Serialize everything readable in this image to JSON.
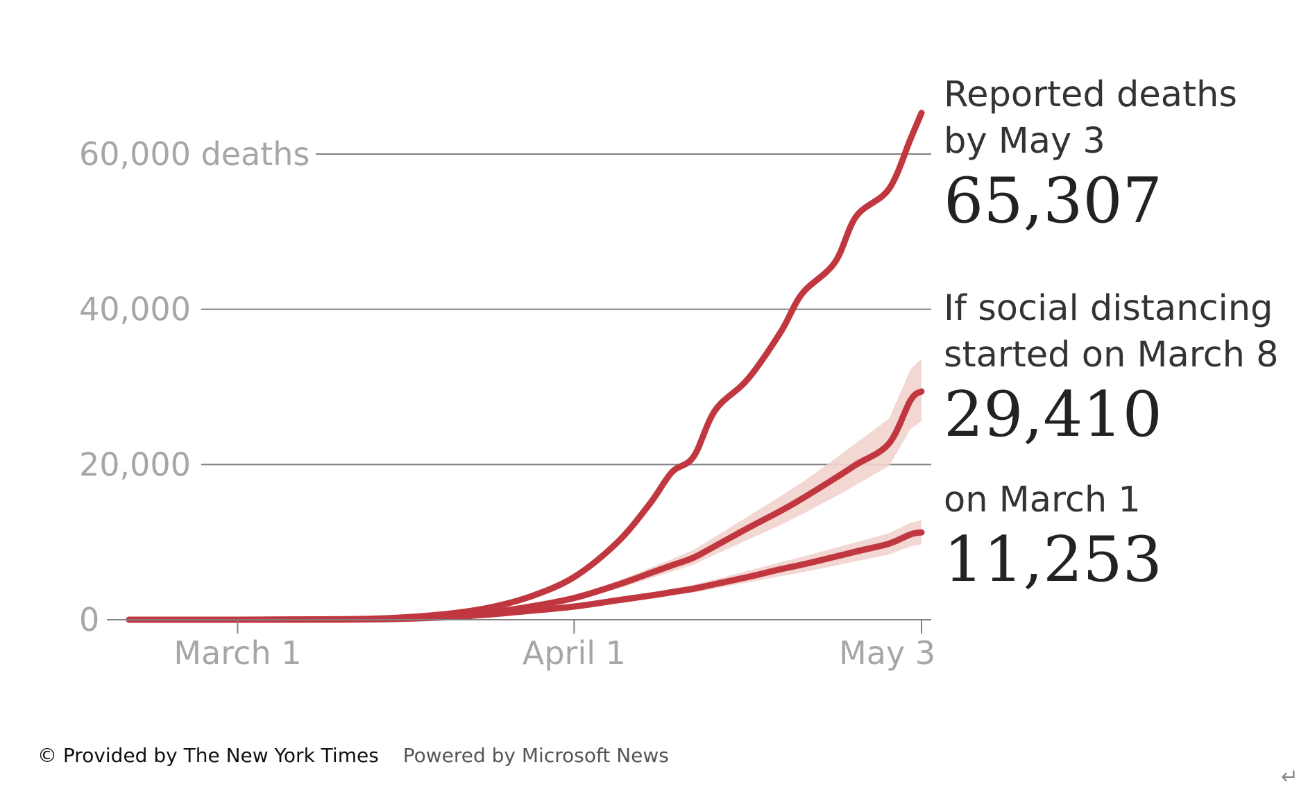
{
  "chart_data": {
    "type": "line",
    "title": "",
    "xlabel": "",
    "ylabel": "",
    "ylim": [
      0,
      65307
    ],
    "x_ticks": [
      "March 1",
      "April 1",
      "May 3"
    ],
    "y_ticks": [
      {
        "value": 0,
        "label": "0"
      },
      {
        "value": 20000,
        "label": "20,000"
      },
      {
        "value": 40000,
        "label": "40,000"
      },
      {
        "value": 60000,
        "label": "60,000 deaths"
      }
    ],
    "x_dates": [
      "2020-02-20",
      "2020-03-01",
      "2020-03-10",
      "2020-03-15",
      "2020-03-20",
      "2020-03-24",
      "2020-03-28",
      "2020-04-01",
      "2020-04-05",
      "2020-04-08",
      "2020-04-10",
      "2020-04-12",
      "2020-04-14",
      "2020-04-17",
      "2020-04-20",
      "2020-04-22",
      "2020-04-25",
      "2020-04-27",
      "2020-04-30",
      "2020-05-02",
      "2020-05-03"
    ],
    "series": [
      {
        "name": "",
        "values": [
          0,
          0,
          50,
          200,
          700,
          1500,
          3000,
          5500,
          10000,
          15000,
          19000,
          21000,
          27000,
          31000,
          37000,
          42000,
          46000,
          52000,
          55500,
          62000,
          65307
        ]
      },
      {
        "name": "",
        "values": [
          0,
          0,
          30,
          100,
          400,
          900,
          1700,
          2800,
          4500,
          6000,
          7000,
          8000,
          9500,
          11800,
          14000,
          15600,
          18200,
          20000,
          22700,
          28300,
          29410
        ],
        "band_lower": [
          0,
          0,
          30,
          100,
          380,
          850,
          1600,
          2600,
          4000,
          5300,
          6200,
          7100,
          8400,
          10300,
          12200,
          13600,
          15800,
          17400,
          19800,
          24600,
          25600
        ],
        "band_upper": [
          0,
          0,
          30,
          100,
          420,
          950,
          1800,
          3000,
          5000,
          6700,
          7800,
          9000,
          10700,
          13300,
          15900,
          17700,
          20700,
          22800,
          25900,
          32300,
          33600
        ]
      },
      {
        "name": "",
        "values": [
          0,
          0,
          20,
          80,
          300,
          650,
          1150,
          1700,
          2500,
          3100,
          3550,
          4000,
          4600,
          5500,
          6500,
          7100,
          8100,
          8800,
          9800,
          11000,
          11253
        ],
        "band_lower": [
          0,
          0,
          20,
          80,
          280,
          600,
          1050,
          1550,
          2200,
          2700,
          3100,
          3500,
          4000,
          4800,
          5600,
          6100,
          6950,
          7550,
          8400,
          9450,
          9700
        ],
        "band_upper": [
          0,
          0,
          20,
          80,
          320,
          700,
          1250,
          1850,
          2800,
          3500,
          4000,
          4500,
          5200,
          6300,
          7400,
          8100,
          9250,
          10000,
          11150,
          12500,
          12800
        ]
      }
    ],
    "annotations": [
      {
        "lines": [
          "Reported deaths",
          "by May 3"
        ],
        "value": "65,307"
      },
      {
        "lines": [
          "If social distancing",
          "started on March 8"
        ],
        "value": "29,410"
      },
      {
        "lines": [
          "on March 1"
        ],
        "value": "11,253"
      }
    ],
    "colors": {
      "line": "#c1373f",
      "band": "#f2d3ce",
      "grid": "#808080",
      "tick_text": "#a6a6a6"
    }
  },
  "credits": {
    "provided": "© Provided by The New York Times",
    "powered": "Powered by Microsoft News"
  },
  "return_glyph": "↵"
}
